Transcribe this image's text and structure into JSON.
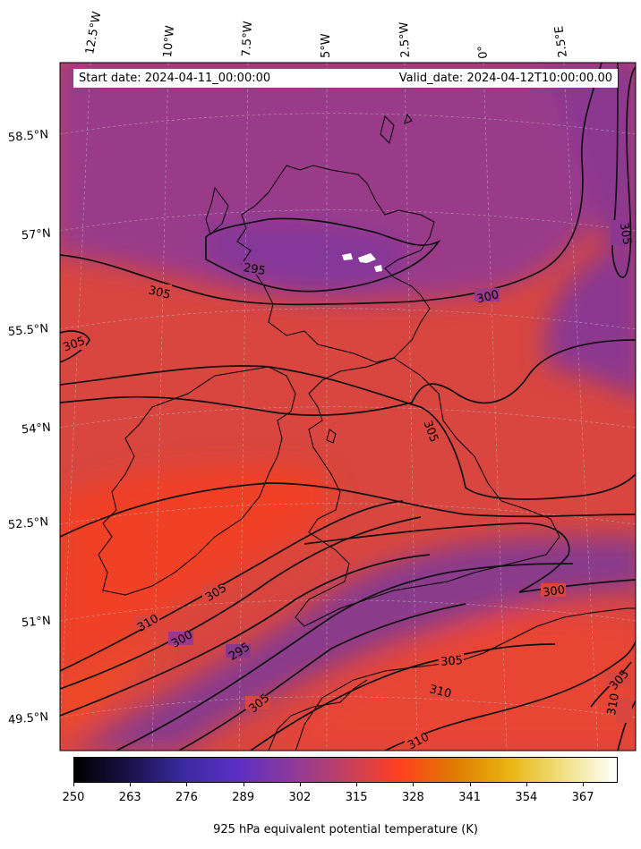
{
  "header": {
    "start_date": "Start date: 2024-04-11_00:00:00",
    "valid_date": "Valid_date: 2024-04-12T10:00:00.00"
  },
  "longitude_labels": [
    "12.5°W",
    "10°W",
    "7.5°W",
    "5°W",
    "2.5°W",
    "0°",
    "2.5°E"
  ],
  "latitude_labels": [
    "58.5°N",
    "57°N",
    "55.5°N",
    "54°N",
    "52.5°N",
    "51°N",
    "49.5°N"
  ],
  "contour_levels": [
    "295",
    "300",
    "305",
    "310"
  ],
  "contour_labels": [
    {
      "text": "295",
      "region": "scotland"
    },
    {
      "text": "305",
      "region": "north-atlantic"
    },
    {
      "text": "305",
      "region": "west-coast"
    },
    {
      "text": "300",
      "region": "north-sea"
    },
    {
      "text": "305",
      "region": "north-east-edge"
    },
    {
      "text": "305",
      "region": "england-north"
    },
    {
      "text": "305",
      "region": "south-ireland-sea"
    },
    {
      "text": "310",
      "region": "south-west"
    },
    {
      "text": "300",
      "region": "south-west"
    },
    {
      "text": "295",
      "region": "south-west"
    },
    {
      "text": "305",
      "region": "bay-of-biscay"
    },
    {
      "text": "300",
      "region": "channel"
    },
    {
      "text": "305",
      "region": "channel-east"
    },
    {
      "text": "310",
      "region": "france"
    },
    {
      "text": "310",
      "region": "france-south"
    },
    {
      "text": "305",
      "region": "france-east"
    },
    {
      "text": "310",
      "region": "france-east-edge"
    }
  ],
  "colorbar": {
    "ticks": [
      "250",
      "263",
      "276",
      "289",
      "302",
      "315",
      "328",
      "341",
      "354",
      "367"
    ],
    "min": 250,
    "max": 375,
    "label": "925 hPa equivalent potential temperature (K)",
    "colormap": "CMRmap-like",
    "colors": [
      "#000000",
      "#1a1048",
      "#3a2aa0",
      "#5b2fc4",
      "#8d3a9a",
      "#c24060",
      "#ff4020",
      "#e07a00",
      "#e8b410",
      "#f0e080",
      "#ffffff"
    ]
  },
  "field_colors": {
    "warm": "#f2442a",
    "mid": "#d8463f",
    "cool": "#8a3890"
  }
}
